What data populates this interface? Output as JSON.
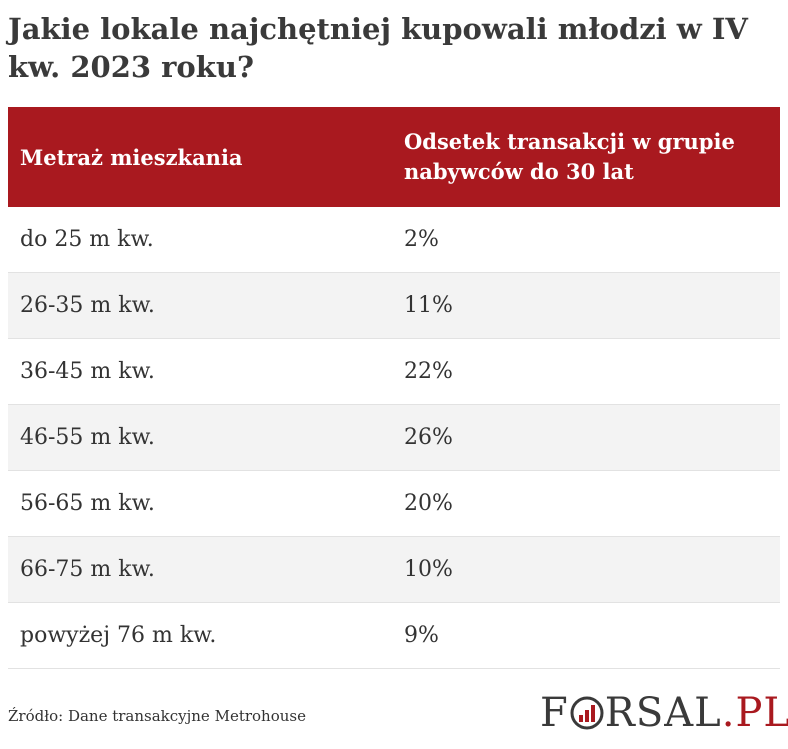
{
  "title": "Jakie lokale najchętniej kupowali młodzi w IV kw. 2023 roku?",
  "chart_data": {
    "type": "table",
    "columns": [
      "Metraż mieszkania",
      "Odsetek transakcji w grupie nabywców do 30 lat"
    ],
    "rows": [
      {
        "size": "do 25 m kw.",
        "share": "2%"
      },
      {
        "size": "26-35 m kw.",
        "share": "11%"
      },
      {
        "size": "36-45 m kw.",
        "share": "22%"
      },
      {
        "size": "46-55 m kw.",
        "share": "26%"
      },
      {
        "size": "56-65 m kw.",
        "share": "20%"
      },
      {
        "size": "66-75 m kw.",
        "share": "10%"
      },
      {
        "size": "powyżej 76 m kw.",
        "share": "9%"
      }
    ]
  },
  "source": "Źródło: Dane transakcyjne Metrohouse",
  "logo": {
    "part1": "F",
    "part2": "RSAL",
    "part3": ".PL"
  },
  "colors": {
    "header_bg": "#a9191f",
    "row_alt_bg": "#f3f3f3",
    "accent": "#a9191f"
  }
}
